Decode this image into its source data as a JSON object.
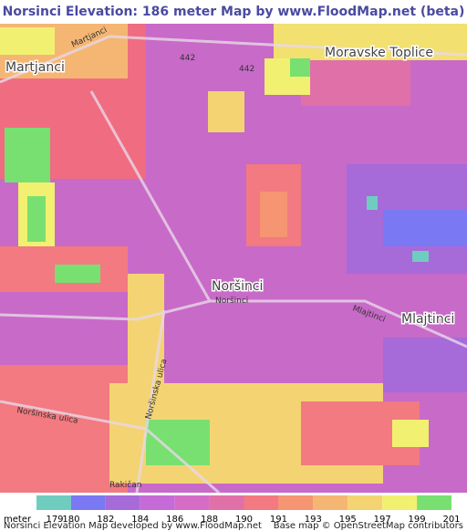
{
  "header": {
    "title": "Norsinci Elevation: 186 meter Map by www.FloodMap.net (beta)"
  },
  "map": {
    "labels": {
      "martjanci": "Martjanci",
      "martjanci_road": "Martjanci",
      "road_442_a": "442",
      "road_442_b": "442",
      "moravske": "Moravske Toplice",
      "norsinci": "Noršinci",
      "norsinci_road": "Noršinci",
      "mlajtinci": "Mlajtinci",
      "mlajtinci_road": "Mlajtinci",
      "norsinska_a": "Noršinska ulica",
      "norsinska_b": "Noršinska ulica",
      "rakican": "Rakičan"
    }
  },
  "legend": {
    "unit": "meter",
    "ticks": [
      179,
      180,
      182,
      184,
      186,
      188,
      190,
      191,
      193,
      195,
      197,
      199,
      201
    ],
    "colors": [
      "#6fcdc0",
      "#7a78f2",
      "#a76ad9",
      "#c56ad6",
      "#d66cc6",
      "#e070a8",
      "#f27a80",
      "#f59572",
      "#f5b673",
      "#f4d472",
      "#f2f070",
      "#78e070"
    ]
  },
  "footer": {
    "left": "Norsinci Elevation Map developed by www.FloodMap.net",
    "right": "Base map © OpenStreetMap contributors"
  }
}
